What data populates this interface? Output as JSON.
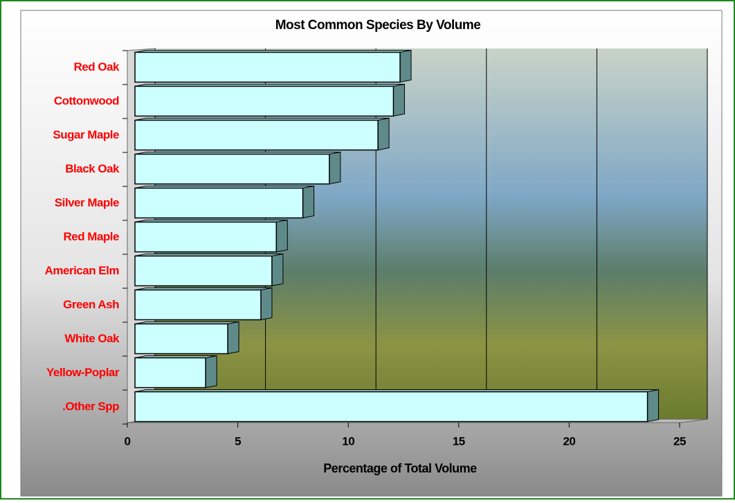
{
  "chart_data": {
    "type": "bar",
    "orientation": "horizontal",
    "title": "Most Common Species By Volume",
    "x_label": "Percentage of Total Volume",
    "categories": [
      "Red Oak",
      "Cottonwood",
      "Sugar Maple",
      "Black Oak",
      "Silver Maple",
      "Red Maple",
      "American Elm",
      "Green Ash",
      "White Oak",
      "Yellow-Poplar",
      ".Other Spp"
    ],
    "values": [
      12,
      11.7,
      11,
      8.8,
      7.6,
      6.4,
      6.2,
      5.7,
      4.2,
      3.2,
      23.2
    ],
    "color": "#ccffff",
    "label_color": "#ff0000",
    "xlim": [
      0,
      25
    ],
    "xticks": [
      0,
      5,
      10,
      15,
      20,
      25
    ],
    "grid": true
  }
}
